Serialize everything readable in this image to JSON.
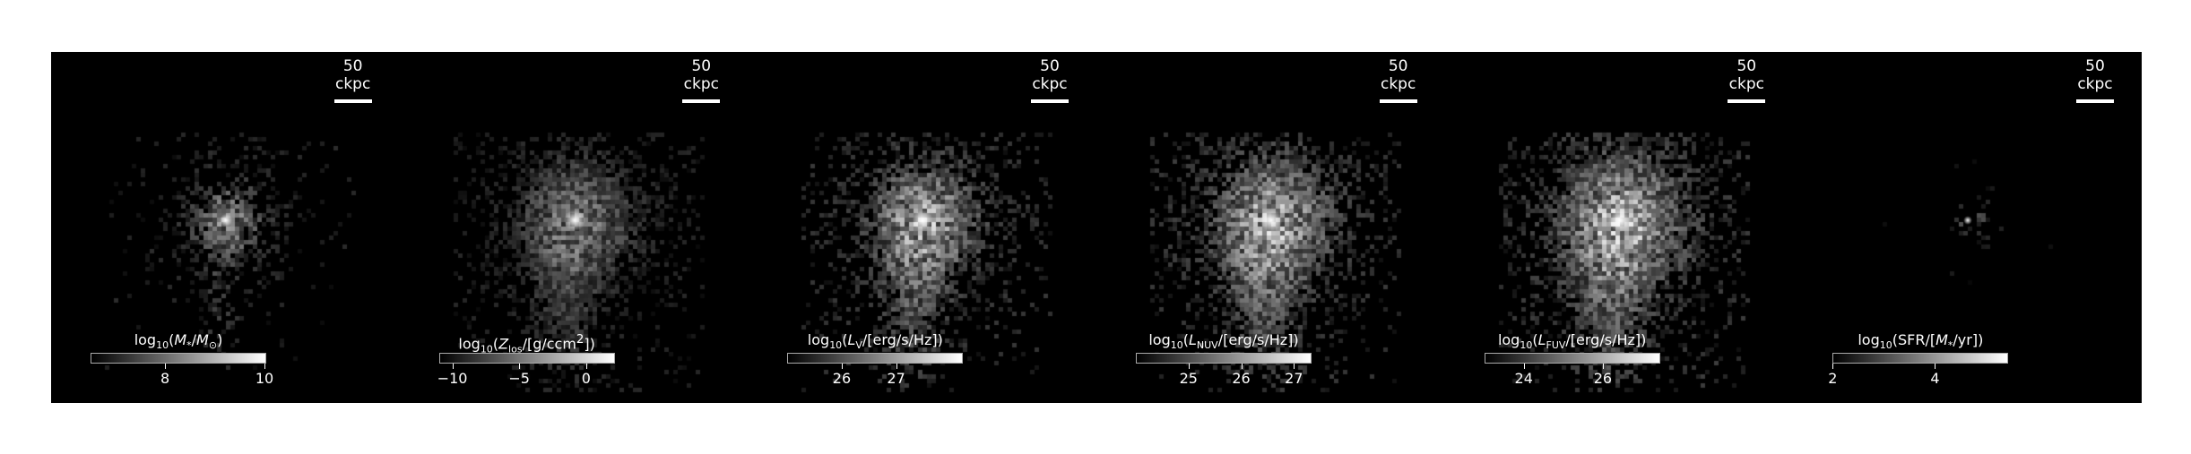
{
  "scalebar_label": "50 ckpc",
  "panels": [
    {
      "name": "stellar-mass",
      "cbar": {
        "pre": "log",
        "sub": "10",
        "open": "(",
        "sym": "M",
        "symsub": "*",
        "rest": "/M",
        "restsub": "⊙",
        "close": ")"
      },
      "vmin": 6.5,
      "vmax": 10,
      "ticks": [
        {
          "v": 8,
          "label": "8"
        },
        {
          "v": 10,
          "label": "10"
        }
      ],
      "style": {
        "scale": 0.6,
        "density": 0.55,
        "tail": 0.55,
        "brightness": 0.55
      }
    },
    {
      "name": "metallicity",
      "cbar": {
        "pre": "log",
        "sub": "10",
        "open": "(",
        "sym": "Z",
        "symsub": "los",
        "rest": "/[g/ccm",
        "sup": "2",
        "close": "])"
      },
      "vmin": -11,
      "vmax": 2,
      "ticks": [
        {
          "v": -10,
          "label": "−10"
        },
        {
          "v": -5,
          "label": "−5"
        },
        {
          "v": 0,
          "label": "0"
        }
      ],
      "style": {
        "scale": 1.0,
        "density": 0.85,
        "tail": 0.9,
        "brightness": 0.5
      }
    },
    {
      "name": "v-band-luminosity",
      "cbar": {
        "pre": "log",
        "sub": "10",
        "open": "(",
        "sym": "L",
        "symsub": "V",
        "rest": "/[erg/s/Hz]",
        "close": ")"
      },
      "vmin": 25.0,
      "vmax": 28.2,
      "ticks": [
        {
          "v": 26,
          "label": "26"
        },
        {
          "v": 27,
          "label": "27"
        }
      ],
      "style": {
        "scale": 0.95,
        "density": 0.8,
        "tail": 0.85,
        "brightness": 0.7
      }
    },
    {
      "name": "nuv-luminosity",
      "cbar": {
        "pre": "log",
        "sub": "10",
        "open": "(",
        "sym": "L",
        "symsub": "NUV",
        "rest": "/[erg/s/Hz]",
        "close": ")"
      },
      "vmin": 24.0,
      "vmax": 27.3,
      "ticks": [
        {
          "v": 25,
          "label": "25"
        },
        {
          "v": 26,
          "label": "26"
        },
        {
          "v": 27,
          "label": "27"
        }
      ],
      "style": {
        "scale": 1.05,
        "density": 0.9,
        "tail": 0.85,
        "brightness": 0.72
      }
    },
    {
      "name": "fuv-luminosity",
      "cbar": {
        "pre": "log",
        "sub": "10",
        "open": "(",
        "sym": "L",
        "symsub": "FUV",
        "rest": "/[erg/s/Hz]",
        "close": ")"
      },
      "vmin": 23.0,
      "vmax": 27.4,
      "ticks": [
        {
          "v": 24,
          "label": "24"
        },
        {
          "v": 26,
          "label": "26"
        }
      ],
      "style": {
        "scale": 1.1,
        "density": 0.95,
        "tail": 0.85,
        "brightness": 0.75
      }
    },
    {
      "name": "star-formation-rate",
      "cbar": {
        "pre": "log",
        "sub": "10",
        "open": "(SFR/[",
        "sym": "M",
        "symsub": "*",
        "rest": "/yr])",
        "close": ""
      },
      "vmin": 2,
      "vmax": 5.4,
      "ticks": [
        {
          "v": 2,
          "label": "2"
        },
        {
          "v": 4,
          "label": "4"
        }
      ],
      "style": {
        "scale": 0.25,
        "density": 0.12,
        "tail": 0.2,
        "brightness": 0.35
      }
    }
  ]
}
